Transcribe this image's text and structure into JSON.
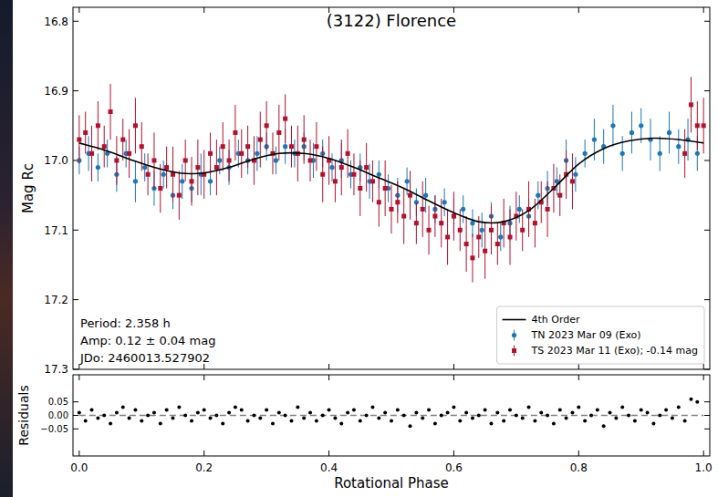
{
  "chart_data": [
    {
      "type": "scatter",
      "title": "(3122) Florence",
      "y_label": "Mag Rc",
      "xlim": [
        -0.01,
        1.01
      ],
      "xticks": [
        0,
        0.2,
        0.4,
        0.6,
        0.8,
        1
      ],
      "ylim": [
        17.3,
        16.78
      ],
      "yticks": [
        16.8,
        16.9,
        {
          "value": 17,
          "label": "17.0"
        },
        17.1,
        17.2,
        17.3
      ],
      "tick_labels": "y",
      "legend": "lower right",
      "annotations": [
        "Period: 2.358 h",
        "Amp: 0.12 ± 0.04 mag",
        "JDo: 2460013.527902"
      ],
      "series": [
        {
          "name": "4th Order",
          "type": "line",
          "color": "#000000",
          "line_style": "solid",
          "x": [
            0,
            0.04,
            0.08,
            0.12,
            0.16,
            0.2,
            0.24,
            0.28,
            0.32,
            0.36,
            0.4,
            0.44,
            0.48,
            0.52,
            0.56,
            0.6,
            0.64,
            0.68,
            0.72,
            0.76,
            0.8,
            0.84,
            0.88,
            0.92,
            0.96,
            1
          ],
          "values": [
            16.975,
            16.985,
            16.998,
            17.01,
            17.018,
            17.018,
            17.01,
            16.998,
            16.99,
            16.99,
            16.997,
            17.01,
            17.025,
            17.04,
            17.058,
            17.075,
            17.088,
            17.088,
            17.072,
            17.04,
            17.005,
            16.983,
            16.972,
            16.968,
            16.97,
            16.975
          ]
        },
        {
          "name": "TN 2023 Mar 09 (Exo)",
          "type": "scatter",
          "color": "#1f77b4",
          "marker": "circle",
          "x": [
            0,
            0.015,
            0.03,
            0.045,
            0.06,
            0.075,
            0.09,
            0.105,
            0.12,
            0.135,
            0.15,
            0.165,
            0.18,
            0.195,
            0.21,
            0.225,
            0.24,
            0.255,
            0.27,
            0.285,
            0.3,
            0.315,
            0.33,
            0.345,
            0.36,
            0.375,
            0.39,
            0.405,
            0.42,
            0.435,
            0.45,
            0.465,
            0.48,
            0.495,
            0.51,
            0.525,
            0.54,
            0.555,
            0.57,
            0.585,
            0.6,
            0.615,
            0.63,
            0.645,
            0.66,
            0.675,
            0.69,
            0.705,
            0.72,
            0.735,
            0.75,
            0.765,
            0.78,
            0.795,
            0.81,
            0.825,
            0.84,
            0.855,
            0.87,
            0.885,
            0.9,
            0.915,
            0.93,
            0.945,
            0.96,
            0.975,
            0.99
          ],
          "values": [
            17.0,
            16.99,
            17.01,
            16.99,
            17.02,
            16.99,
            17.03,
            17.01,
            17.04,
            17.02,
            17.05,
            17.03,
            17.04,
            17.02,
            17.03,
            17.0,
            17.01,
            16.99,
            17.0,
            16.99,
            16.98,
            17.0,
            16.98,
            16.99,
            16.98,
            17.0,
            16.99,
            17.01,
            17.0,
            17.02,
            17.01,
            17.03,
            17.02,
            17.04,
            17.05,
            17.03,
            17.06,
            17.05,
            17.07,
            17.06,
            17.08,
            17.07,
            17.09,
            17.1,
            17.08,
            17.11,
            17.09,
            17.07,
            17.08,
            17.05,
            17.04,
            17.03,
            17.0,
            17.02,
            16.99,
            16.97,
            16.98,
            16.95,
            16.99,
            16.96,
            16.95,
            16.97,
            16.99,
            16.96,
            16.98,
            16.97,
            16.99
          ],
          "errors": [
            0.02,
            0.025,
            0.02,
            0.02,
            0.025,
            0.02,
            0.03,
            0.02,
            0.025,
            0.02,
            0.02,
            0.025,
            0.02,
            0.03,
            0.02,
            0.02,
            0.025,
            0.02,
            0.02,
            0.025,
            0.02,
            0.02,
            0.025,
            0.02,
            0.02,
            0.025,
            0.02,
            0.02,
            0.025,
            0.02,
            0.02,
            0.025,
            0.02,
            0.02,
            0.025,
            0.02,
            0.02,
            0.025,
            0.02,
            0.02,
            0.025,
            0.02,
            0.02,
            0.025,
            0.02,
            0.02,
            0.025,
            0.02,
            0.025,
            0.02,
            0.025,
            0.02,
            0.03,
            0.025,
            0.02,
            0.03,
            0.025,
            0.03,
            0.025,
            0.03,
            0.025,
            0.03,
            0.025,
            0.03,
            0.025,
            0.03,
            0.025
          ]
        },
        {
          "name": "TS 2023 Mar 11 (Exo); -0.14 mag",
          "type": "scatter",
          "color": "#b0122f",
          "marker": "square",
          "x": [
            0,
            0.01,
            0.02,
            0.03,
            0.04,
            0.05,
            0.06,
            0.07,
            0.08,
            0.09,
            0.1,
            0.11,
            0.12,
            0.13,
            0.14,
            0.15,
            0.16,
            0.17,
            0.18,
            0.19,
            0.2,
            0.21,
            0.22,
            0.23,
            0.24,
            0.25,
            0.26,
            0.27,
            0.28,
            0.29,
            0.3,
            0.31,
            0.32,
            0.33,
            0.34,
            0.35,
            0.36,
            0.37,
            0.38,
            0.39,
            0.4,
            0.41,
            0.42,
            0.43,
            0.44,
            0.45,
            0.46,
            0.47,
            0.48,
            0.49,
            0.5,
            0.51,
            0.52,
            0.53,
            0.54,
            0.55,
            0.56,
            0.57,
            0.58,
            0.59,
            0.6,
            0.61,
            0.62,
            0.63,
            0.64,
            0.65,
            0.66,
            0.67,
            0.68,
            0.69,
            0.7,
            0.71,
            0.72,
            0.73,
            0.74,
            0.75,
            0.76,
            0.77,
            0.78,
            0.79,
            0.97,
            0.98,
            0.99,
            1
          ],
          "values": [
            16.97,
            16.96,
            16.99,
            16.95,
            16.98,
            16.93,
            17.0,
            16.97,
            16.99,
            16.95,
            16.98,
            17.02,
            17.0,
            17.04,
            17.01,
            17.02,
            17.05,
            17.0,
            17.03,
            17.01,
            17.02,
            16.99,
            17.01,
            16.98,
            17.0,
            16.96,
            16.99,
            16.98,
            17.0,
            16.97,
            16.95,
            16.99,
            16.96,
            16.94,
            16.98,
            16.99,
            16.97,
            17.0,
            16.98,
            17.02,
            17.0,
            17.03,
            17.01,
            16.99,
            17.02,
            17.04,
            17.01,
            17.03,
            17.06,
            17.04,
            17.07,
            17.06,
            17.08,
            17.05,
            17.09,
            17.07,
            17.1,
            17.08,
            17.09,
            17.11,
            17.08,
            17.1,
            17.12,
            17.14,
            17.11,
            17.13,
            17.1,
            17.12,
            17.09,
            17.11,
            17.08,
            17.1,
            17.07,
            17.09,
            17.06,
            17.07,
            17.04,
            17.05,
            17.02,
            17.03,
            16.99,
            16.92,
            16.95,
            16.95
          ],
          "errors": [
            0.035,
            0.03,
            0.04,
            0.035,
            0.03,
            0.04,
            0.035,
            0.03,
            0.035,
            0.04,
            0.035,
            0.03,
            0.04,
            0.035,
            0.03,
            0.04,
            0.035,
            0.03,
            0.035,
            0.04,
            0.035,
            0.03,
            0.04,
            0.035,
            0.03,
            0.04,
            0.035,
            0.03,
            0.035,
            0.04,
            0.035,
            0.03,
            0.04,
            0.035,
            0.03,
            0.04,
            0.035,
            0.03,
            0.035,
            0.04,
            0.035,
            0.03,
            0.04,
            0.035,
            0.03,
            0.04,
            0.035,
            0.03,
            0.035,
            0.04,
            0.035,
            0.03,
            0.04,
            0.035,
            0.03,
            0.04,
            0.035,
            0.03,
            0.035,
            0.04,
            0.035,
            0.03,
            0.04,
            0.035,
            0.03,
            0.04,
            0.035,
            0.03,
            0.035,
            0.04,
            0.035,
            0.03,
            0.04,
            0.035,
            0.03,
            0.04,
            0.035,
            0.03,
            0.035,
            0.04,
            0.035,
            0.04,
            0.035,
            0.04
          ]
        }
      ]
    },
    {
      "type": "scatter",
      "x_label": "Rotational Phase",
      "y_label": "Residuals",
      "xlim": [
        -0.01,
        1.01
      ],
      "xticks": [
        {
          "value": 0,
          "label": "0.0"
        },
        0.2,
        0.4,
        0.6,
        0.8,
        {
          "value": 1,
          "label": "1.0"
        }
      ],
      "ylim": [
        -0.15,
        0.15
      ],
      "yticks": [
        {
          "value": -0.05,
          "label": "−0.05"
        },
        {
          "value": 0,
          "label": "0.00"
        },
        0.05
      ],
      "series": [
        {
          "type": "line",
          "color": "#808080",
          "line_style": "dashed",
          "x": [
            0,
            1
          ],
          "values": [
            0,
            0
          ]
        },
        {
          "type": "scatter",
          "color": "#000000",
          "marker": "circle",
          "x": [
            0,
            0.01,
            0.02,
            0.03,
            0.04,
            0.05,
            0.06,
            0.07,
            0.08,
            0.09,
            0.1,
            0.11,
            0.12,
            0.13,
            0.14,
            0.15,
            0.16,
            0.17,
            0.18,
            0.19,
            0.2,
            0.21,
            0.22,
            0.23,
            0.24,
            0.25,
            0.26,
            0.27,
            0.28,
            0.29,
            0.3,
            0.31,
            0.32,
            0.33,
            0.34,
            0.35,
            0.36,
            0.37,
            0.38,
            0.39,
            0.4,
            0.41,
            0.42,
            0.43,
            0.44,
            0.45,
            0.46,
            0.47,
            0.48,
            0.49,
            0.5,
            0.51,
            0.52,
            0.53,
            0.54,
            0.55,
            0.56,
            0.57,
            0.58,
            0.59,
            0.6,
            0.61,
            0.62,
            0.63,
            0.64,
            0.65,
            0.66,
            0.67,
            0.68,
            0.69,
            0.7,
            0.71,
            0.72,
            0.73,
            0.74,
            0.75,
            0.76,
            0.77,
            0.78,
            0.79,
            0.8,
            0.81,
            0.82,
            0.83,
            0.84,
            0.85,
            0.86,
            0.87,
            0.88,
            0.89,
            0.9,
            0.91,
            0.92,
            0.93,
            0.94,
            0.95,
            0.96,
            0.97,
            0.98,
            0.99
          ],
          "values": [
            0.01,
            -0.02,
            0.02,
            -0.01,
            0.0,
            -0.03,
            0.01,
            0.03,
            -0.01,
            0.02,
            -0.02,
            0.0,
            0.01,
            -0.03,
            0.02,
            -0.01,
            0.03,
            0.0,
            -0.02,
            0.01,
            0.02,
            -0.01,
            0.0,
            -0.03,
            0.01,
            0.03,
            0.02,
            -0.02,
            0.0,
            -0.01,
            0.02,
            -0.03,
            0.01,
            0.0,
            -0.02,
            0.03,
            -0.01,
            0.01,
            -0.02,
            0.0,
            0.02,
            -0.01,
            -0.03,
            0.01,
            0.02,
            -0.02,
            0.0,
            0.03,
            -0.01,
            0.01,
            -0.02,
            0.02,
            0.0,
            -0.04,
            0.01,
            -0.01,
            0.02,
            -0.03,
            0.0,
            0.01,
            0.03,
            -0.02,
            0.01,
            -0.01,
            0.0,
            0.02,
            -0.03,
            0.01,
            -0.02,
            0.02,
            0.0,
            -0.01,
            0.03,
            -0.02,
            0.01,
            0.0,
            -0.03,
            0.02,
            -0.01,
            0.01,
            0.03,
            -0.02,
            0.0,
            0.02,
            -0.04,
            0.01,
            -0.01,
            0.03,
            0.0,
            -0.02,
            0.02,
            0.01,
            -0.03,
            0.0,
            0.02,
            -0.01,
            0.03,
            -0.02,
            0.06,
            0.05
          ]
        }
      ]
    }
  ]
}
